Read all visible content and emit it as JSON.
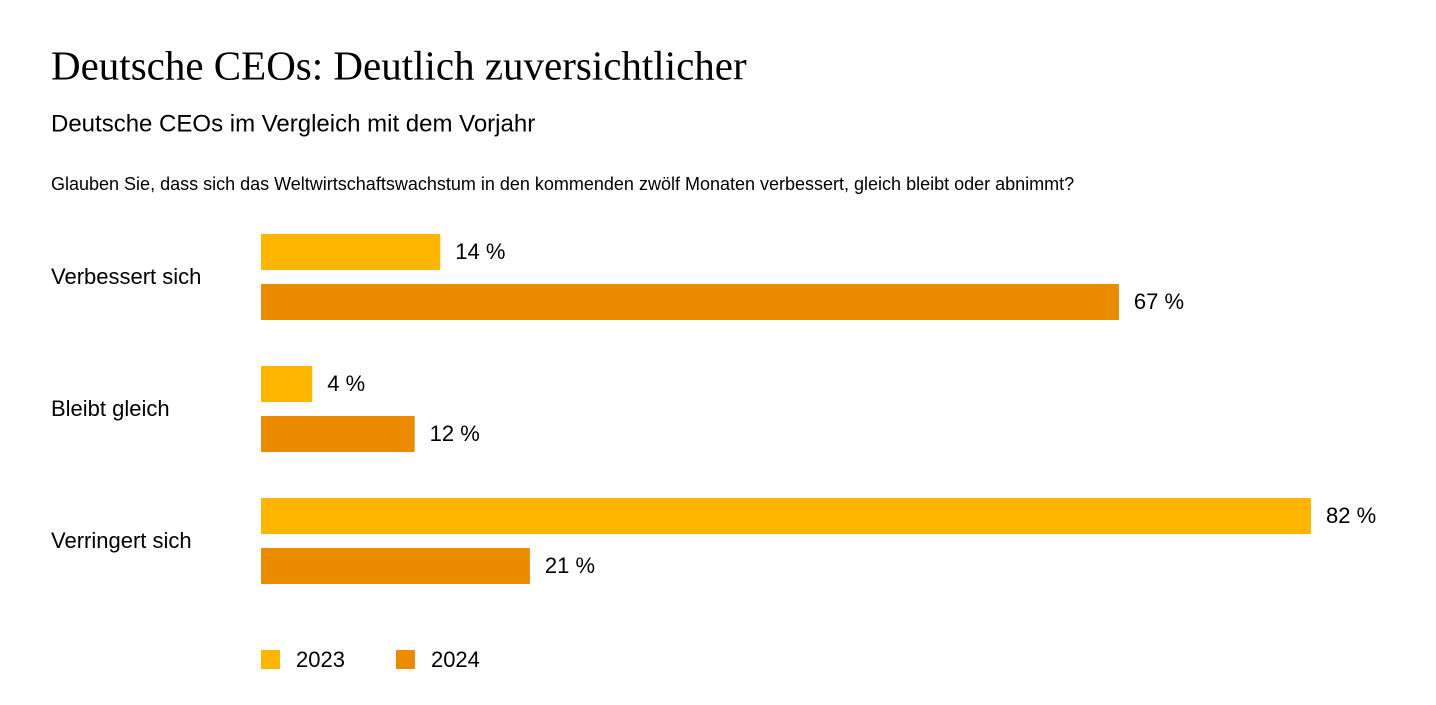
{
  "chart_data": {
    "type": "bar",
    "orientation": "horizontal",
    "title": "Deutsche CEOs: Deutlich zuversichtlicher",
    "subtitle": "Deutsche CEOs im Vergleich mit dem Vorjahr",
    "question": "Glauben Sie, dass sich das Weltwirtschaftswachstum in den kommenden zwölf Monaten verbessert, gleich bleibt oder abnimmt?",
    "categories": [
      "Verbessert sich",
      "Bleibt gleich",
      "Verringert sich"
    ],
    "series": [
      {
        "name": "2023",
        "color": "#FFB600",
        "values": [
          14,
          4,
          82
        ],
        "value_labels": [
          "14 %",
          "4 %",
          "82 %"
        ]
      },
      {
        "name": "2024",
        "color": "#EB8C00",
        "values": [
          67,
          12,
          21
        ],
        "value_labels": [
          "67 %",
          "12 %",
          "21 %"
        ]
      }
    ],
    "legend": "bottom-left"
  }
}
